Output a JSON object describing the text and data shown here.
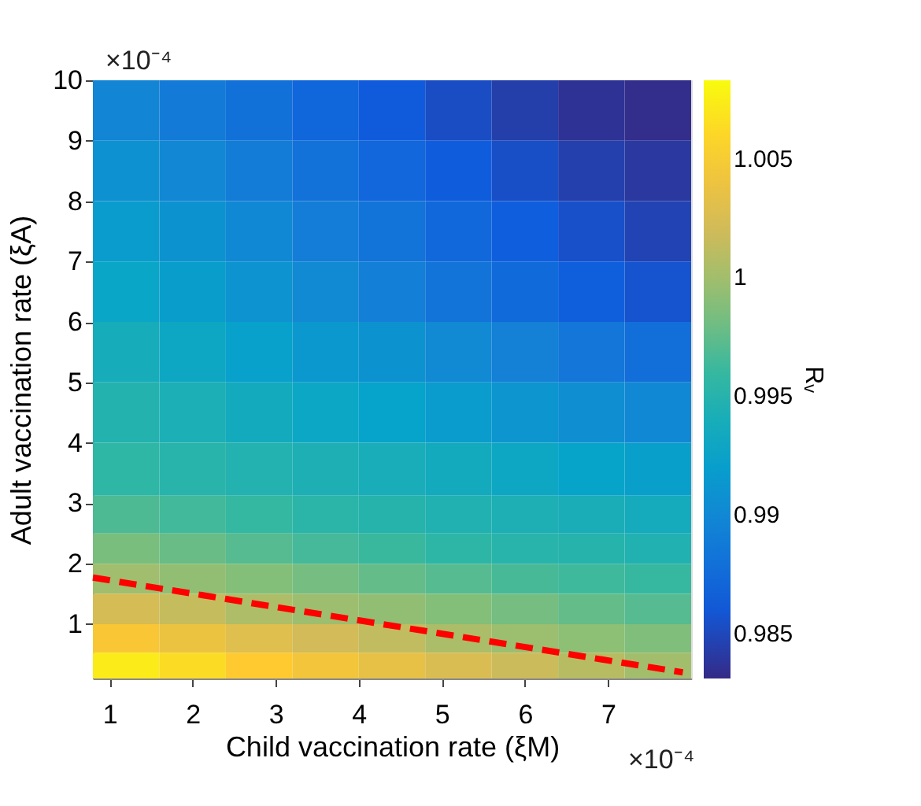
{
  "chart_data": {
    "type": "heatmap",
    "xlabel": "Child vaccination rate (ξM)",
    "ylabel": "Adult vaccination rate (ξA)",
    "clabel": "Rᵥ",
    "annotations": [
      "×10⁻⁴",
      "×10⁻⁴"
    ],
    "xlim": [
      0.8,
      8.0
    ],
    "ylim": [
      0.1,
      10
    ],
    "xticks": [
      1,
      2,
      3,
      4,
      5,
      6,
      7
    ],
    "yticks": [
      1,
      2,
      3,
      4,
      5,
      6,
      7,
      8,
      9,
      10
    ],
    "clim": [
      0.9831,
      1.0083
    ],
    "cticks": [
      0.985,
      0.99,
      0.995,
      1,
      1.005
    ],
    "x": [
      1.2,
      2.0,
      2.8,
      3.6,
      4.4,
      5.2,
      6.0,
      6.8,
      7.6
    ],
    "y": [
      9.5,
      8.5,
      7.5,
      6.5,
      5.5,
      4.5,
      3.5,
      2.75,
      2.25,
      1.75,
      1.25,
      0.75,
      0.3
    ],
    "cells": [
      [
        0.9898,
        0.9889,
        0.988,
        0.9871,
        0.9862,
        0.9853,
        0.9844,
        0.9836,
        0.9833
      ],
      [
        0.9908,
        0.9899,
        0.989,
        0.9881,
        0.9872,
        0.9863,
        0.9854,
        0.9845,
        0.984
      ],
      [
        0.9918,
        0.9909,
        0.99,
        0.9891,
        0.9882,
        0.9873,
        0.9864,
        0.9855,
        0.9847
      ],
      [
        0.9928,
        0.9919,
        0.991,
        0.9901,
        0.9892,
        0.9883,
        0.9874,
        0.9865,
        0.9857
      ],
      [
        0.9939,
        0.9931,
        0.9923,
        0.9915,
        0.9909,
        0.9901,
        0.9893,
        0.9885,
        0.9879
      ],
      [
        0.9949,
        0.9943,
        0.9936,
        0.993,
        0.9925,
        0.9918,
        0.9912,
        0.9906,
        0.99
      ],
      [
        0.9957,
        0.9952,
        0.9948,
        0.9944,
        0.994,
        0.9936,
        0.9931,
        0.9926,
        0.9922
      ],
      [
        0.9968,
        0.9964,
        0.9959,
        0.9954,
        0.995,
        0.9947,
        0.9944,
        0.9941,
        0.9937
      ],
      [
        0.9984,
        0.9978,
        0.9971,
        0.9965,
        0.9961,
        0.9956,
        0.9952,
        0.995,
        0.9947
      ],
      [
        0.9999,
        0.9993,
        0.9987,
        0.9982,
        0.9976,
        0.9971,
        0.9966,
        0.9963,
        0.996
      ],
      [
        1.0023,
        1.0015,
        1.0005,
        0.9998,
        0.9993,
        0.9987,
        0.9982,
        0.9976,
        0.9971
      ],
      [
        1.0048,
        1.0039,
        1.003,
        1.0021,
        1.0013,
        1.0004,
        0.9997,
        0.9991,
        0.9986
      ],
      [
        1.0073,
        1.0063,
        1.0053,
        1.0044,
        1.0035,
        1.0026,
        1.0018,
        1.0009,
        1.0
      ]
    ],
    "series": [
      {
        "type": "line",
        "color": "#ff0000",
        "line_style": "dashed",
        "x": [
          0.8,
          7.9
        ],
        "values": [
          1.77,
          0.2
        ]
      }
    ],
    "grid": false
  }
}
